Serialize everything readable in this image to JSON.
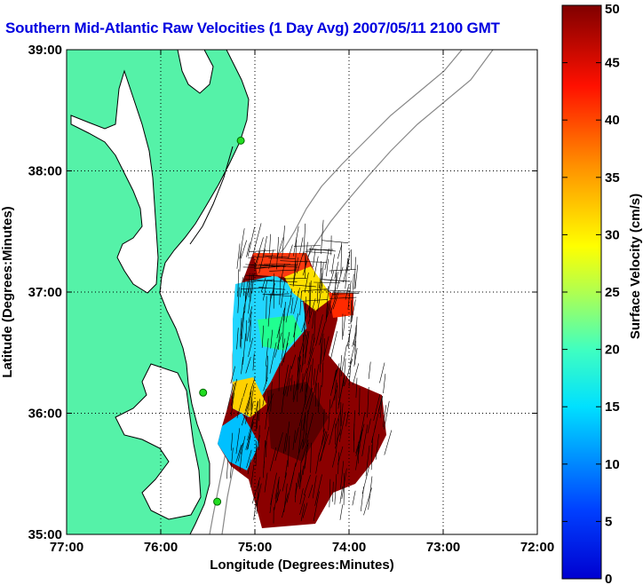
{
  "title": "Southern Mid-Atlantic Raw Velocities (1 Day Avg) 2007/05/11 2100 GMT",
  "map": {
    "xlabel": "Longitude (Degrees:Minutes)",
    "ylabel": "Latitude (Degrees:Minutes)",
    "xlim": [
      77,
      72
    ],
    "ylim": [
      35,
      39
    ],
    "x_ticks": [
      "77:00",
      "76:00",
      "75:00",
      "74:00",
      "73:00",
      "72:00"
    ],
    "y_ticks": [
      "39:00",
      "38:00",
      "37:00",
      "36:00",
      "35:00"
    ],
    "grid": "dotted",
    "land_color": "#55f2a8",
    "stations": [
      {
        "lon": 75.15,
        "lat": 38.25
      },
      {
        "lon": 75.55,
        "lat": 36.17
      },
      {
        "lon": 75.4,
        "lat": 35.27
      }
    ]
  },
  "colorbar": {
    "label": "Surface Velocity (cm/s)",
    "min": 0,
    "max": 50,
    "ticks": [
      "0",
      "5",
      "10",
      "15",
      "20",
      "25",
      "30",
      "35",
      "40",
      "45",
      "50"
    ],
    "colormap": "jet"
  }
}
